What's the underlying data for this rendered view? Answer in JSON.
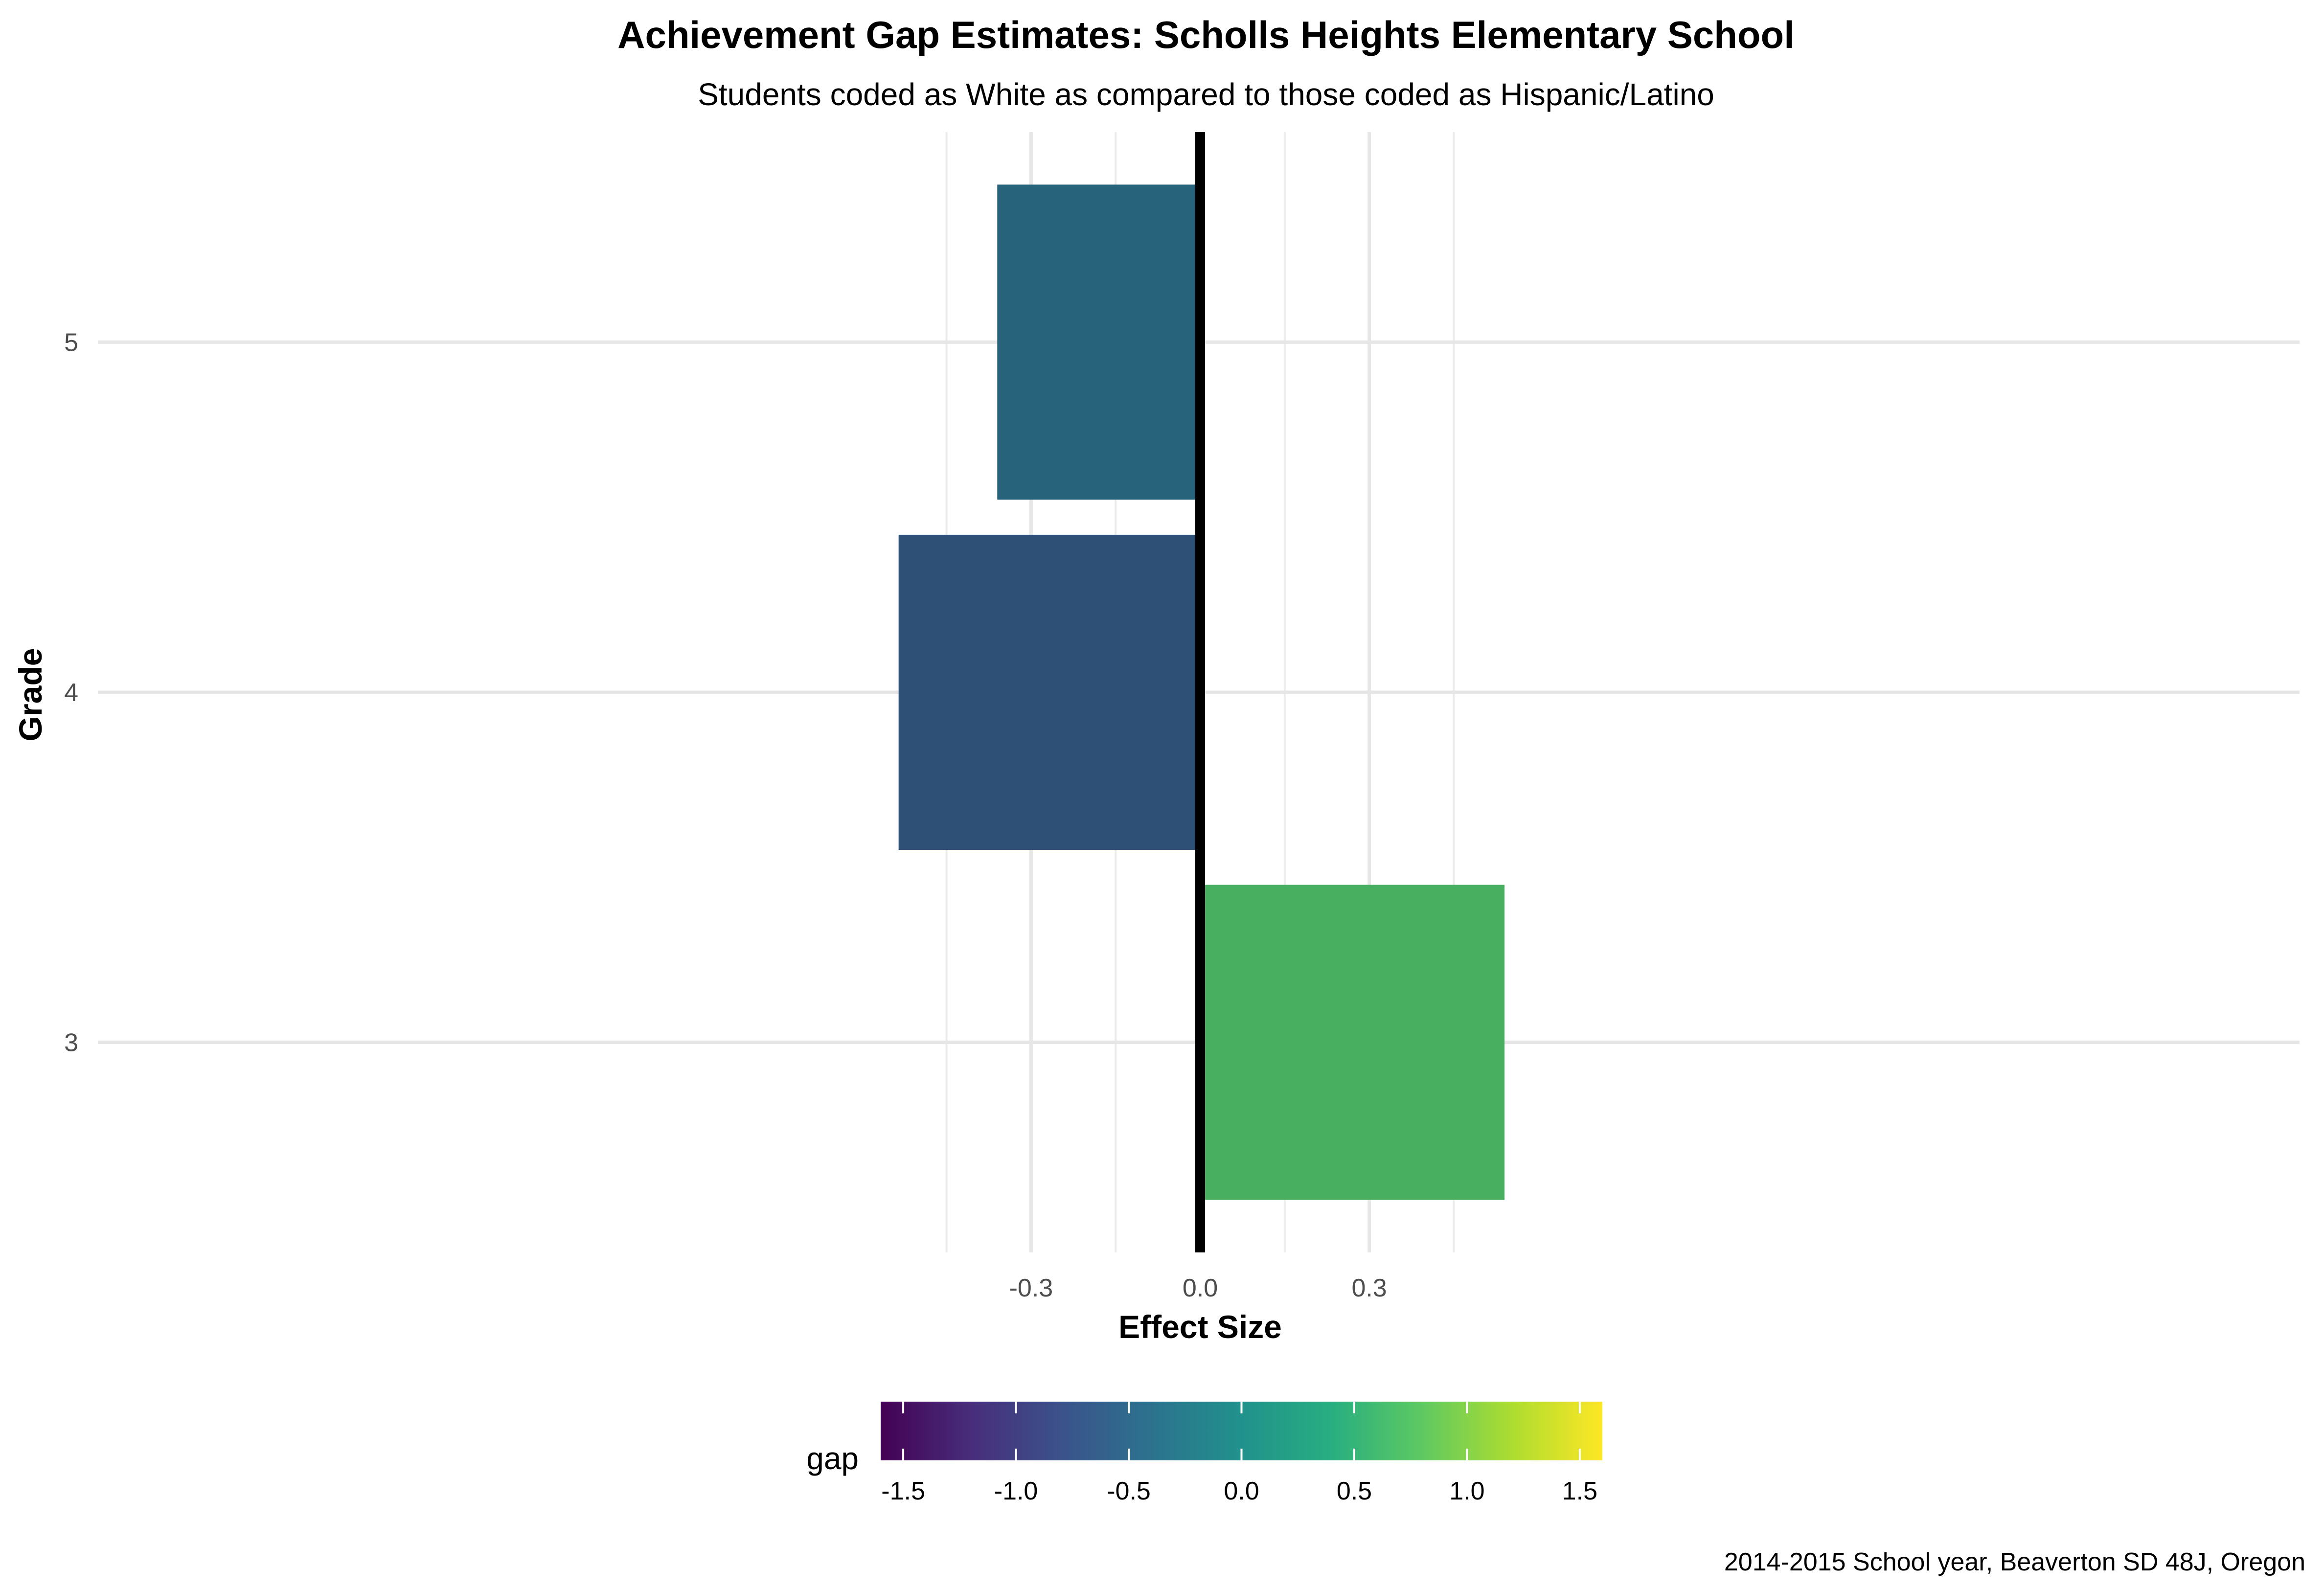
{
  "chart_data": {
    "type": "bar",
    "orientation": "horizontal",
    "title": "Achievement Gap Estimates: Scholls Heights Elementary School",
    "subtitle": "Students coded as White as compared to those coded as Hispanic/Latino",
    "caption": "2014-2015 School year, Beaverton SD 48J, Oregon",
    "xlabel": "Effect Size",
    "ylabel": "Grade",
    "categories": [
      "3",
      "4",
      "5"
    ],
    "values": [
      0.54,
      -0.535,
      -0.36
    ],
    "xlim": [
      -0.58,
      0.58
    ],
    "x_ticks": [
      -0.3,
      0.0,
      0.3
    ],
    "x_tick_labels": [
      "-0.3",
      "0.0",
      "0.3"
    ],
    "x_minor_gridlines": [
      -0.45,
      -0.15,
      0.15,
      0.45
    ],
    "grid": true,
    "reference_line": 0,
    "bar_colors": [
      "#48AF60",
      "#2E5077",
      "#27637B"
    ],
    "legend": {
      "title": "gap",
      "position": "bottom",
      "range": [
        -1.6,
        1.6
      ],
      "ticks": [
        -1.5,
        -1.0,
        -0.5,
        0.0,
        0.5,
        1.0,
        1.5
      ],
      "tick_labels": [
        "-1.5",
        "-1.0",
        "-0.5",
        "0.0",
        "0.5",
        "1.0",
        "1.5"
      ],
      "colormap": "viridis"
    }
  }
}
